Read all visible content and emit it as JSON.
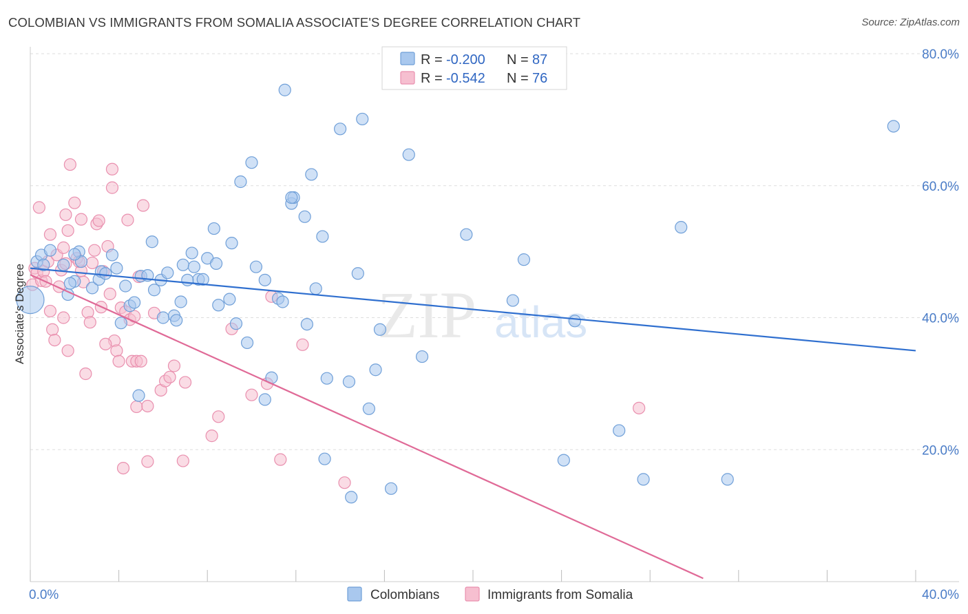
{
  "title": "COLOMBIAN VS IMMIGRANTS FROM SOMALIA ASSOCIATE'S DEGREE CORRELATION CHART",
  "source": "Source: ZipAtlas.com",
  "watermark": {
    "part1": "ZIP",
    "part2": "atlas"
  },
  "colors": {
    "colombians_fill": "#a9c8ee",
    "colombians_stroke": "#6f9fd8",
    "colombians_line": "#2f6fcf",
    "somalia_fill": "#f6bfd0",
    "somalia_stroke": "#e98fae",
    "somalia_line": "#e06a97",
    "tick_text": "#4a7cc7",
    "grid": "#dddddd"
  },
  "legend": {
    "row1": {
      "r_label": "R =",
      "r_value": "-0.200",
      "n_label": "N =",
      "n_value": "87"
    },
    "row2": {
      "r_label": "R =",
      "r_value": "-0.542",
      "n_label": "N =",
      "n_value": "76"
    }
  },
  "chart_data": {
    "type": "scatter",
    "title": "COLOMBIAN VS IMMIGRANTS FROM SOMALIA ASSOCIATE'S DEGREE CORRELATION CHART",
    "ylabel": "Associate's Degree",
    "xlim": [
      0,
      40
    ],
    "ylim": [
      0,
      80
    ],
    "x_tick_labels": [
      "0.0%",
      "40.0%"
    ],
    "y_ticks": [
      20,
      40,
      60,
      80
    ],
    "y_tick_labels": [
      "20.0%",
      "40.0%",
      "60.0%",
      "80.0%"
    ],
    "grid": true,
    "legend_position": "top-center",
    "series": [
      {
        "name": "Colombians",
        "r": -0.2,
        "n": 87,
        "trend": {
          "x": [
            0,
            40
          ],
          "y": [
            47.5,
            35.0
          ]
        },
        "points": [
          [
            0.0,
            42.7
          ],
          [
            0.3,
            48.5
          ],
          [
            0.5,
            49.5
          ],
          [
            0.6,
            48.0
          ],
          [
            0.9,
            50.2
          ],
          [
            1.5,
            48.0
          ],
          [
            1.7,
            43.5
          ],
          [
            2.0,
            45.5
          ],
          [
            1.8,
            45.2
          ],
          [
            2.2,
            50.0
          ],
          [
            2.3,
            48.5
          ],
          [
            2.8,
            44.5
          ],
          [
            3.1,
            45.8
          ],
          [
            3.2,
            47.0
          ],
          [
            3.4,
            46.7
          ],
          [
            3.7,
            49.5
          ],
          [
            3.9,
            47.5
          ],
          [
            4.1,
            39.2
          ],
          [
            4.3,
            44.8
          ],
          [
            4.5,
            41.8
          ],
          [
            4.7,
            42.3
          ],
          [
            4.9,
            28.2
          ],
          [
            5.0,
            46.3
          ],
          [
            5.3,
            46.4
          ],
          [
            5.5,
            51.5
          ],
          [
            5.6,
            44.2
          ],
          [
            5.9,
            45.7
          ],
          [
            6.0,
            40.0
          ],
          [
            6.2,
            46.8
          ],
          [
            6.5,
            40.3
          ],
          [
            6.6,
            39.6
          ],
          [
            6.8,
            42.4
          ],
          [
            6.9,
            48.0
          ],
          [
            7.3,
            49.8
          ],
          [
            7.4,
            47.7
          ],
          [
            7.6,
            45.8
          ],
          [
            7.8,
            45.8
          ],
          [
            8.0,
            49.0
          ],
          [
            8.3,
            53.5
          ],
          [
            8.4,
            48.2
          ],
          [
            8.5,
            41.9
          ],
          [
            9.0,
            42.8
          ],
          [
            9.1,
            51.3
          ],
          [
            9.3,
            39.1
          ],
          [
            9.5,
            60.6
          ],
          [
            9.8,
            36.2
          ],
          [
            10.0,
            63.5
          ],
          [
            10.2,
            47.7
          ],
          [
            10.6,
            27.6
          ],
          [
            10.6,
            45.7
          ],
          [
            10.9,
            30.9
          ],
          [
            11.2,
            42.9
          ],
          [
            11.4,
            42.4
          ],
          [
            11.5,
            74.5
          ],
          [
            11.8,
            57.3
          ],
          [
            11.9,
            58.2
          ],
          [
            12.4,
            55.3
          ],
          [
            12.5,
            39.0
          ],
          [
            12.7,
            61.7
          ],
          [
            12.9,
            44.4
          ],
          [
            13.2,
            52.3
          ],
          [
            13.3,
            18.6
          ],
          [
            13.4,
            30.8
          ],
          [
            14.0,
            68.6
          ],
          [
            14.4,
            30.3
          ],
          [
            14.5,
            12.8
          ],
          [
            14.8,
            46.7
          ],
          [
            15.0,
            70.1
          ],
          [
            15.3,
            26.2
          ],
          [
            15.6,
            32.1
          ],
          [
            15.8,
            38.2
          ],
          [
            16.3,
            14.1
          ],
          [
            17.1,
            64.7
          ],
          [
            17.7,
            34.1
          ],
          [
            19.7,
            52.6
          ],
          [
            21.8,
            42.6
          ],
          [
            22.3,
            48.8
          ],
          [
            24.1,
            18.4
          ],
          [
            24.6,
            39.5
          ],
          [
            26.6,
            22.9
          ],
          [
            27.7,
            15.5
          ],
          [
            29.4,
            53.7
          ],
          [
            31.5,
            15.5
          ],
          [
            39.0,
            69.0
          ],
          [
            2.0,
            49.6
          ],
          [
            7.1,
            45.7
          ],
          [
            11.8,
            58.2
          ]
        ]
      },
      {
        "name": "Immigrants from Somalia",
        "r": -0.542,
        "n": 76,
        "trend": {
          "x": [
            0,
            30.4
          ],
          "y": [
            46.5,
            0.5
          ]
        },
        "points": [
          [
            0.1,
            45.0
          ],
          [
            0.2,
            47.5
          ],
          [
            0.3,
            46.8
          ],
          [
            0.4,
            56.7
          ],
          [
            0.5,
            45.6
          ],
          [
            0.6,
            47.0
          ],
          [
            0.7,
            45.5
          ],
          [
            0.8,
            48.5
          ],
          [
            0.9,
            52.6
          ],
          [
            0.9,
            41.0
          ],
          [
            1.0,
            38.2
          ],
          [
            1.1,
            36.6
          ],
          [
            1.2,
            49.5
          ],
          [
            1.3,
            44.7
          ],
          [
            1.4,
            47.2
          ],
          [
            1.5,
            40.0
          ],
          [
            1.5,
            50.6
          ],
          [
            1.6,
            55.6
          ],
          [
            1.7,
            53.2
          ],
          [
            1.7,
            35.0
          ],
          [
            1.8,
            63.2
          ],
          [
            2.0,
            57.4
          ],
          [
            2.1,
            49.0
          ],
          [
            2.3,
            54.9
          ],
          [
            2.3,
            47.1
          ],
          [
            2.4,
            45.4
          ],
          [
            2.5,
            31.5
          ],
          [
            2.6,
            40.8
          ],
          [
            2.7,
            39.3
          ],
          [
            2.8,
            48.3
          ],
          [
            2.9,
            50.2
          ],
          [
            3.0,
            54.2
          ],
          [
            3.1,
            54.7
          ],
          [
            3.2,
            41.6
          ],
          [
            3.3,
            47.0
          ],
          [
            3.5,
            50.8
          ],
          [
            3.6,
            43.6
          ],
          [
            3.7,
            62.5
          ],
          [
            3.7,
            59.7
          ],
          [
            3.8,
            36.5
          ],
          [
            3.9,
            35.0
          ],
          [
            4.0,
            33.4
          ],
          [
            4.1,
            41.5
          ],
          [
            4.2,
            17.2
          ],
          [
            4.3,
            40.9
          ],
          [
            4.4,
            54.8
          ],
          [
            4.5,
            39.7
          ],
          [
            4.6,
            33.4
          ],
          [
            4.8,
            33.4
          ],
          [
            4.8,
            26.5
          ],
          [
            4.9,
            46.2
          ],
          [
            5.0,
            33.4
          ],
          [
            5.1,
            57.0
          ],
          [
            5.3,
            26.6
          ],
          [
            5.3,
            18.2
          ],
          [
            5.6,
            40.7
          ],
          [
            5.9,
            29.0
          ],
          [
            6.1,
            30.4
          ],
          [
            6.5,
            32.7
          ],
          [
            6.9,
            18.3
          ],
          [
            7.0,
            30.2
          ],
          [
            8.2,
            22.1
          ],
          [
            8.5,
            25.0
          ],
          [
            9.1,
            38.3
          ],
          [
            10.0,
            28.3
          ],
          [
            10.7,
            30.0
          ],
          [
            10.9,
            43.2
          ],
          [
            11.3,
            18.5
          ],
          [
            12.3,
            35.9
          ],
          [
            14.2,
            15.0
          ],
          [
            27.5,
            26.3
          ],
          [
            1.6,
            48.2
          ],
          [
            2.2,
            48.5
          ],
          [
            3.4,
            36.0
          ],
          [
            4.7,
            40.2
          ],
          [
            6.3,
            31.0
          ]
        ]
      }
    ]
  }
}
